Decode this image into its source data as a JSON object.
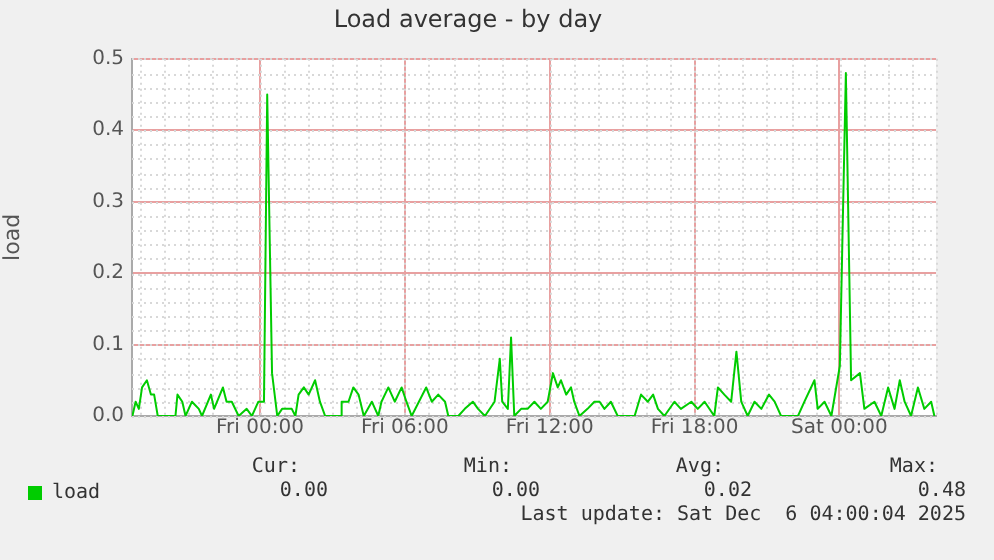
{
  "chart_data": {
    "type": "line",
    "title": "Load average - by day",
    "ylabel": "load",
    "series": [
      {
        "name": "load",
        "color": "#00cc00",
        "x": [
          "2025-12-04T18:43",
          "2025-12-04T18:51",
          "2025-12-04T18:59",
          "2025-12-04T19:07",
          "2025-12-04T19:19",
          "2025-12-04T19:29",
          "2025-12-04T19:37",
          "2025-12-04T19:46",
          "2025-12-04T20:30",
          "2025-12-04T20:35",
          "2025-12-04T20:47",
          "2025-12-04T20:55",
          "2025-12-04T21:11",
          "2025-12-04T21:28",
          "2025-12-04T21:36",
          "2025-12-04T21:58",
          "2025-12-04T22:06",
          "2025-12-04T22:28",
          "2025-12-04T22:37",
          "2025-12-04T22:50",
          "2025-12-04T23:07",
          "2025-12-04T23:27",
          "2025-12-04T23:40",
          "2025-12-04T23:56",
          "2025-12-05T00:10",
          "2025-12-05T00:18",
          "2025-12-05T00:30",
          "2025-12-05T00:43",
          "2025-12-05T00:55",
          "2025-12-05T01:19",
          "2025-12-05T01:28",
          "2025-12-05T01:36",
          "2025-12-05T01:49",
          "2025-12-05T02:01",
          "2025-12-05T02:17",
          "2025-12-05T02:29",
          "2025-12-05T02:42",
          "2025-12-05T03:19",
          "2025-12-05T03:23",
          "2025-12-05T03:40",
          "2025-12-05T03:52",
          "2025-12-05T04:05",
          "2025-12-05T04:18",
          "2025-12-05T04:38",
          "2025-12-05T04:54",
          "2025-12-05T05:02",
          "2025-12-05T05:19",
          "2025-12-05T05:35",
          "2025-12-05T05:52",
          "2025-12-05T06:04",
          "2025-12-05T06:17",
          "2025-12-05T06:53",
          "2025-12-05T07:07",
          "2025-12-05T07:23",
          "2025-12-05T07:40",
          "2025-12-05T07:48",
          "2025-12-05T08:13",
          "2025-12-05T08:29",
          "2025-12-05T08:49",
          "2025-12-05T09:02",
          "2025-12-05T09:19",
          "2025-12-05T09:43",
          "2025-12-05T09:56",
          "2025-12-05T10:02",
          "2025-12-05T10:16",
          "2025-12-05T10:24",
          "2025-12-05T10:32",
          "2025-12-05T10:49",
          "2025-12-05T11:05",
          "2025-12-05T11:22",
          "2025-12-05T11:38",
          "2025-12-05T11:55",
          "2025-12-05T12:08",
          "2025-12-05T12:20",
          "2025-12-05T12:28",
          "2025-12-05T12:41",
          "2025-12-05T12:53",
          "2025-12-05T13:01",
          "2025-12-05T13:14",
          "2025-12-05T13:34",
          "2025-12-05T13:51",
          "2025-12-05T14:04",
          "2025-12-05T14:16",
          "2025-12-05T14:32",
          "2025-12-05T14:49",
          "2025-12-05T15:31",
          "2025-12-05T15:47",
          "2025-12-05T16:04",
          "2025-12-05T16:17",
          "2025-12-05T16:29",
          "2025-12-05T16:45",
          "2025-12-05T17:10",
          "2025-12-05T17:26",
          "2025-12-05T17:52",
          "2025-12-05T18:08",
          "2025-12-05T18:25",
          "2025-12-05T18:49",
          "2025-12-05T18:58",
          "2025-12-05T19:14",
          "2025-12-05T19:31",
          "2025-12-05T19:44",
          "2025-12-05T19:56",
          "2025-12-05T20:12",
          "2025-12-05T20:29",
          "2025-12-05T20:46",
          "2025-12-05T21:05",
          "2025-12-05T21:19",
          "2025-12-05T21:35",
          "2025-12-05T22:17",
          "2025-12-05T22:33",
          "2025-12-05T22:58",
          "2025-12-05T23:06",
          "2025-12-05T23:23",
          "2025-12-05T23:40",
          "2025-12-06T00:01",
          "2025-12-06T00:16",
          "2025-12-06T00:29",
          "2025-12-06T00:51",
          "2025-12-06T01:02",
          "2025-12-06T01:27",
          "2025-12-06T01:44",
          "2025-12-06T02:01",
          "2025-12-06T02:17",
          "2025-12-06T02:30",
          "2025-12-06T02:42",
          "2025-12-06T02:58",
          "2025-12-06T03:15",
          "2025-12-06T03:31",
          "2025-12-06T03:48",
          "2025-12-06T03:56"
        ],
        "values": [
          0,
          0.02,
          0.01,
          0.04,
          0.05,
          0.03,
          0.03,
          0,
          0,
          0.03,
          0.02,
          0,
          0.02,
          0.01,
          0,
          0.03,
          0.01,
          0.04,
          0.02,
          0.02,
          0,
          0.01,
          0,
          0.02,
          0.02,
          0.45,
          0.06,
          0,
          0.01,
          0.01,
          0,
          0.03,
          0.04,
          0.03,
          0.05,
          0.02,
          0,
          0,
          0.02,
          0.02,
          0.04,
          0.03,
          0,
          0.02,
          0,
          0.02,
          0.04,
          0.02,
          0.04,
          0.02,
          0,
          0.04,
          0.02,
          0.03,
          0.02,
          0,
          0,
          0.01,
          0.02,
          0.01,
          0,
          0.02,
          0.08,
          0.02,
          0.01,
          0.11,
          0,
          0.01,
          0.01,
          0.02,
          0.01,
          0.02,
          0.06,
          0.04,
          0.05,
          0.03,
          0.04,
          0.02,
          0,
          0.01,
          0.02,
          0.02,
          0.01,
          0.02,
          0,
          0,
          0.03,
          0.02,
          0.03,
          0.01,
          0,
          0.02,
          0.01,
          0.02,
          0.01,
          0.02,
          0,
          0.04,
          0.03,
          0.02,
          0.09,
          0.02,
          0,
          0.02,
          0.01,
          0.03,
          0.02,
          0,
          0,
          0.02,
          0.05,
          0.01,
          0.02,
          0,
          0.07,
          0.48,
          0.05,
          0.06,
          0.01,
          0.02,
          0,
          0.04,
          0.01,
          0.05,
          0.02,
          0,
          0.04,
          0.01,
          0.02,
          0
        ]
      }
    ],
    "xlim": [
      "2025-12-04T18:42",
      "2025-12-06T04:00"
    ],
    "xticks": [
      {
        "value": "2025-12-05T00:00",
        "label": "Fri 00:00"
      },
      {
        "value": "2025-12-05T06:00",
        "label": "Fri 06:00"
      },
      {
        "value": "2025-12-05T12:00",
        "label": "Fri 12:00"
      },
      {
        "value": "2025-12-05T18:00",
        "label": "Fri 18:00"
      },
      {
        "value": "2025-12-06T00:00",
        "label": "Sat 00:00"
      }
    ],
    "ylim": [
      0,
      0.5
    ],
    "yticks": [
      {
        "value": 0,
        "label": "0.0"
      },
      {
        "value": 0.1,
        "label": "0.1"
      },
      {
        "value": 0.2,
        "label": "0.2"
      },
      {
        "value": 0.3,
        "label": "0.3"
      },
      {
        "value": 0.4,
        "label": "0.4"
      },
      {
        "value": 0.5,
        "label": "0.5"
      }
    ],
    "grid": true,
    "legend": "bottom left",
    "marker": "none",
    "line_style": "solid",
    "annotations": [
      "Cur:",
      "Min:",
      "Avg:",
      "Max:",
      "0.00",
      "0.00",
      "0.02",
      "0.48",
      "Last update: Sat Dec  6 04:00:04 2025"
    ]
  }
}
